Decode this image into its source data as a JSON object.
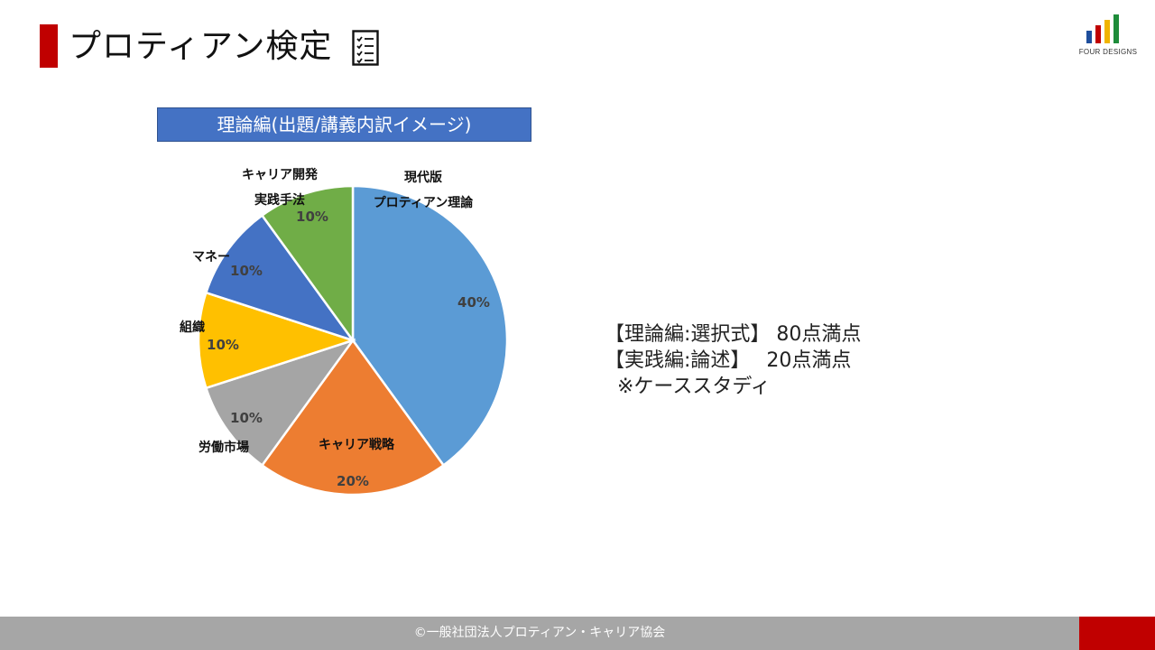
{
  "header": {
    "title": "プロティアン検定",
    "title_bar_color": "#c00000",
    "icon": "checklist-icon",
    "logo_text": "FOUR DESIGNS",
    "logo_colors": [
      "#1f4e9c",
      "#c00000",
      "#f0b400",
      "#1e8c3a"
    ]
  },
  "chart_data": {
    "type": "pie",
    "title": "理論編(出題/講義内訳イメージ)",
    "slices": [
      {
        "label": "現代版プロティアン理論",
        "value": 40,
        "data_label": "40%",
        "color": "#5b9bd5"
      },
      {
        "label": "キャリア戦略",
        "value": 20,
        "data_label": "20%",
        "color": "#ed7d31"
      },
      {
        "label": "労働市場",
        "value": 10,
        "data_label": "10%",
        "color": "#a5a5a5"
      },
      {
        "label": "組織",
        "value": 10,
        "data_label": "10%",
        "color": "#ffc000"
      },
      {
        "label": "マネー",
        "value": 10,
        "data_label": "10%",
        "color": "#4472c4"
      },
      {
        "label": "キャリア開発実践手法",
        "value": 10,
        "data_label": "10%",
        "color": "#70ad47"
      }
    ],
    "label_lines": [
      [
        "現代版",
        "プロティアン理論"
      ],
      [
        "キャリア戦略"
      ],
      [
        "労働市場"
      ],
      [
        "組織"
      ],
      [
        "マネー"
      ],
      [
        "キャリア開発",
        "実践手法"
      ]
    ],
    "legend": false
  },
  "side_note": {
    "line1": "【理論編:選択式】 80点満点",
    "line2": "【実践編:論述】　 20点満点",
    "line3": "  ※ケーススタディ"
  },
  "footer": {
    "text": "©一般社団法人プロティアン・キャリア協会",
    "bar_color": "#a6a6a6",
    "accent_color": "#c00000"
  }
}
